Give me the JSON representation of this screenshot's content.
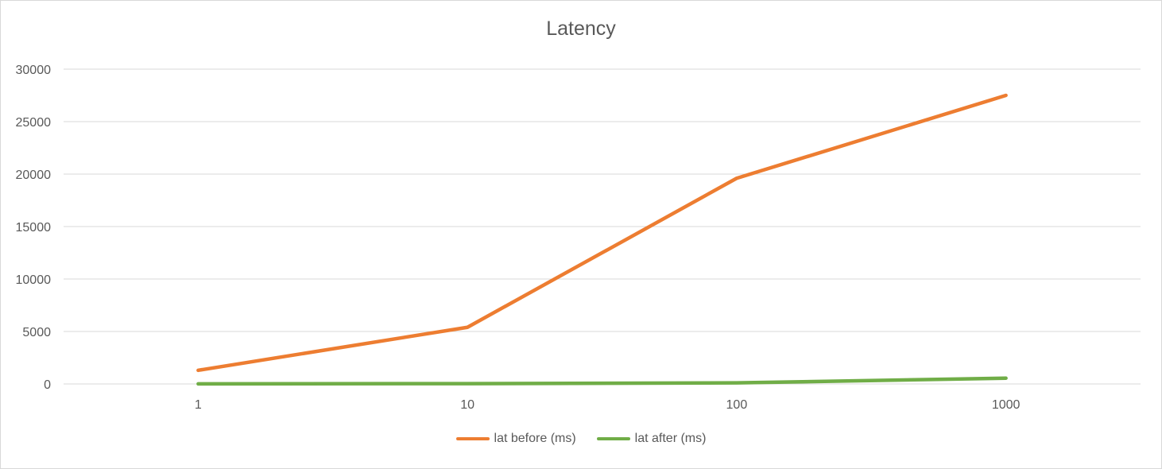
{
  "chart_data": {
    "type": "line",
    "title": "Latency",
    "xlabel": "",
    "ylabel": "",
    "categories": [
      "1",
      "10",
      "100",
      "1000"
    ],
    "ylim": [
      0,
      30000
    ],
    "yticks": [
      0,
      5000,
      10000,
      15000,
      20000,
      25000,
      30000
    ],
    "grid": true,
    "legend_position": "bottom",
    "series": [
      {
        "name": "lat before (ms)",
        "color": "#ed7d31",
        "values": [
          1300,
          5400,
          19600,
          27500
        ]
      },
      {
        "name": "lat after (ms)",
        "color": "#70ad47",
        "values": [
          10,
          30,
          100,
          550
        ]
      }
    ]
  }
}
